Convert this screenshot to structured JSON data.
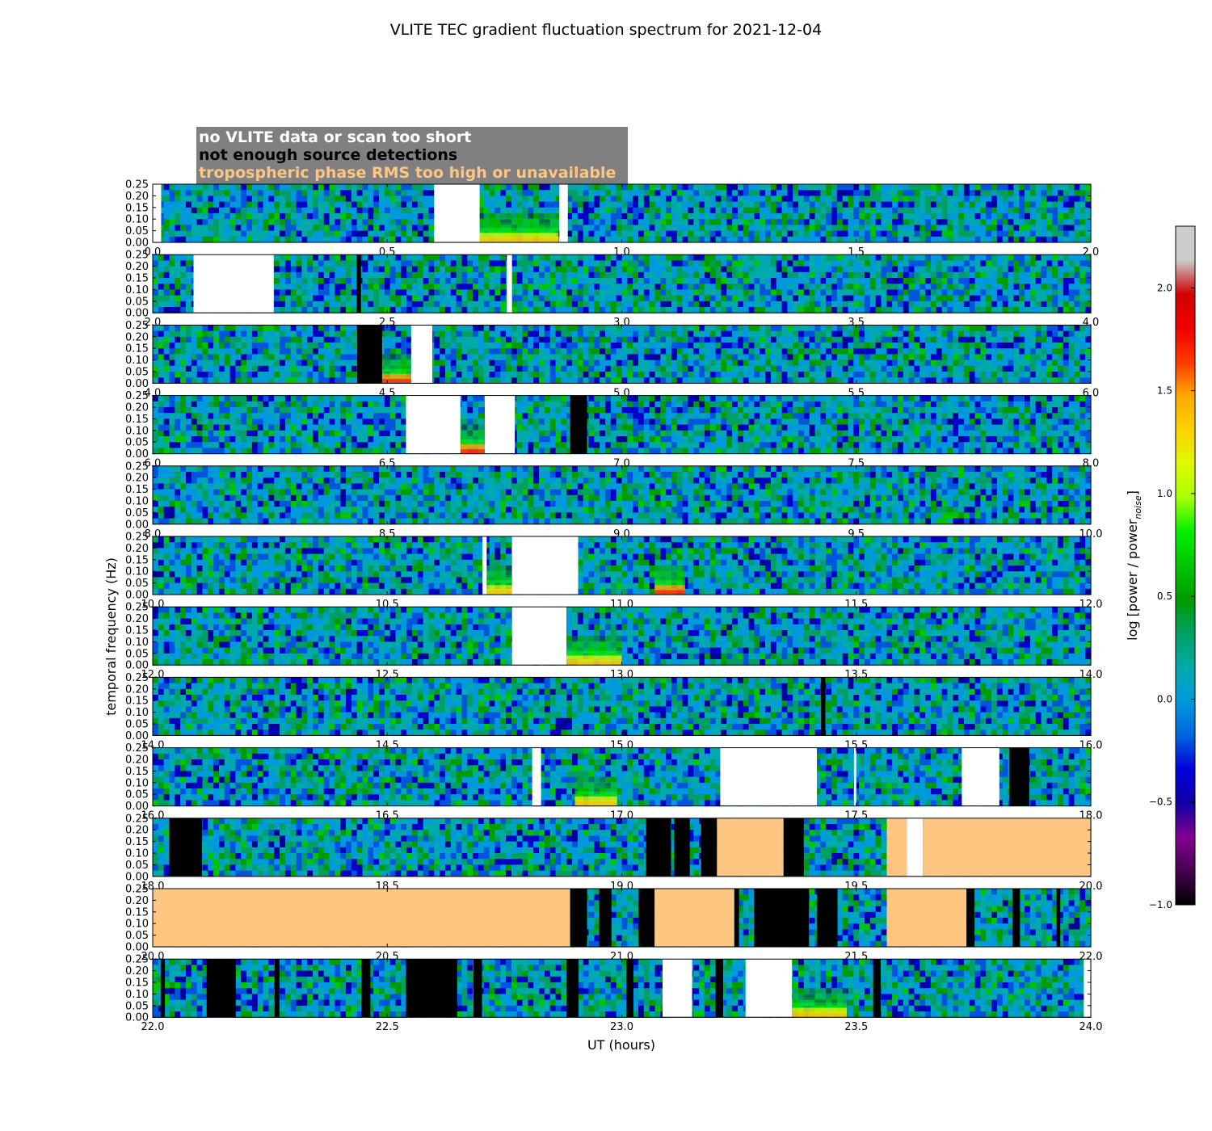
{
  "chart_data": {
    "type": "heatmap",
    "title": "VLITE TEC gradient fluctuation spectrum for 2021-12-04",
    "xlabel": "UT (hours)",
    "ylabel": "temporal frequency (Hz)",
    "ylim": [
      0,
      0.25
    ],
    "yticks": [
      "0.00",
      "0.05",
      "0.10",
      "0.15",
      "0.20",
      "0.25"
    ],
    "legend": {
      "placement": "top-left",
      "entries": [
        {
          "label": "no VLITE data or scan too short",
          "color": "#ffffff"
        },
        {
          "label": "not enough source detections",
          "color": "#000000"
        },
        {
          "label": "tropospheric phase RMS too high or unavailable",
          "color": "#ffc682"
        }
      ]
    },
    "colorbar": {
      "label": "log [power / power",
      "label_sub": "noise",
      "label_end": "]",
      "range": [
        -1.0,
        2.3
      ],
      "colormap": "nipy_spectral",
      "ticks": [
        "−1.0",
        "−0.5",
        "0.0",
        "0.5",
        "1.0",
        "1.5",
        "2.0"
      ],
      "tick_values": [
        -1.0,
        -0.5,
        0.0,
        0.5,
        1.0,
        1.5,
        2.0
      ]
    },
    "panels": [
      {
        "xlim": [
          0.0,
          2.0
        ],
        "xticks": [
          "0.0",
          "0.5",
          "1.0",
          "1.5",
          "2.0"
        ],
        "masks": [
          {
            "start": 0.0,
            "end": 0.018,
            "kind": "nodata"
          },
          {
            "start": 0.6,
            "end": 0.697,
            "kind": "nodata"
          },
          {
            "start": 0.867,
            "end": 0.885,
            "kind": "nodata"
          }
        ],
        "hotspots": [
          {
            "start": 0.697,
            "end": 0.865,
            "level": 1.3
          }
        ]
      },
      {
        "xlim": [
          2.0,
          4.0
        ],
        "xticks": [
          "2.0",
          "2.5",
          "3.0",
          "3.5",
          "4.0"
        ],
        "masks": [
          {
            "start": 2.087,
            "end": 2.258,
            "kind": "nodata"
          },
          {
            "start": 2.435,
            "end": 2.444,
            "kind": "nodet"
          },
          {
            "start": 2.755,
            "end": 2.766,
            "kind": "nodata"
          }
        ],
        "hotspots": []
      },
      {
        "xlim": [
          4.0,
          6.0
        ],
        "xticks": [
          "4.0",
          "4.5",
          "5.0",
          "5.5",
          "6.0"
        ],
        "masks": [
          {
            "start": 4.436,
            "end": 4.489,
            "kind": "nodet"
          },
          {
            "start": 4.551,
            "end": 4.596,
            "kind": "nodata"
          }
        ],
        "hotspots": [
          {
            "start": 4.489,
            "end": 4.551,
            "level": 1.6
          }
        ]
      },
      {
        "xlim": [
          6.0,
          8.0
        ],
        "xticks": [
          "6.0",
          "6.5",
          "7.0",
          "7.5",
          "8.0"
        ],
        "masks": [
          {
            "start": 6.54,
            "end": 6.656,
            "kind": "nodata"
          },
          {
            "start": 6.708,
            "end": 6.772,
            "kind": "nodata"
          },
          {
            "start": 6.89,
            "end": 6.926,
            "kind": "nodet"
          }
        ],
        "hotspots": [
          {
            "start": 6.656,
            "end": 6.708,
            "level": 1.6
          }
        ]
      },
      {
        "xlim": [
          8.0,
          10.0
        ],
        "xticks": [
          "8.0",
          "8.5",
          "9.0",
          "9.5",
          "10.0"
        ],
        "masks": [],
        "hotspots": []
      },
      {
        "xlim": [
          10.0,
          12.0
        ],
        "xticks": [
          "10.0",
          "10.5",
          "11.0",
          "11.5",
          "12.0"
        ],
        "masks": [
          {
            "start": 10.703,
            "end": 10.712,
            "kind": "nodata"
          },
          {
            "start": 10.766,
            "end": 10.907,
            "kind": "nodata"
          }
        ],
        "hotspots": [
          {
            "start": 10.712,
            "end": 10.766,
            "level": 1.3
          },
          {
            "start": 11.07,
            "end": 11.135,
            "level": 1.7
          }
        ]
      },
      {
        "xlim": [
          12.0,
          14.0
        ],
        "xticks": [
          "12.0",
          "12.5",
          "13.0",
          "13.5",
          "14.0"
        ],
        "masks": [
          {
            "start": 12.766,
            "end": 12.882,
            "kind": "nodata"
          }
        ],
        "hotspots": [
          {
            "start": 12.882,
            "end": 13.0,
            "level": 1.4
          }
        ]
      },
      {
        "xlim": [
          14.0,
          16.0
        ],
        "xticks": [
          "14.0",
          "14.5",
          "15.0",
          "15.5",
          "16.0"
        ],
        "masks": [
          {
            "start": 15.425,
            "end": 15.434,
            "kind": "nodet"
          }
        ],
        "hotspots": []
      },
      {
        "xlim": [
          16.0,
          18.0
        ],
        "xticks": [
          "16.0",
          "16.5",
          "17.0",
          "17.5",
          "18.0"
        ],
        "masks": [
          {
            "start": 16.809,
            "end": 16.828,
            "kind": "nodata"
          },
          {
            "start": 17.21,
            "end": 17.416,
            "kind": "nodata"
          },
          {
            "start": 17.495,
            "end": 17.5,
            "kind": "nodata"
          },
          {
            "start": 17.725,
            "end": 17.805,
            "kind": "nodata"
          },
          {
            "start": 17.826,
            "end": 17.869,
            "kind": "nodet"
          }
        ],
        "hotspots": [
          {
            "start": 16.9,
            "end": 16.99,
            "level": 1.2
          }
        ]
      },
      {
        "xlim": [
          18.0,
          20.0
        ],
        "xticks": [
          "18.0",
          "18.5",
          "19.0",
          "19.5",
          "20.0"
        ],
        "masks": [
          {
            "start": 18.035,
            "end": 18.105,
            "kind": "nodet"
          },
          {
            "start": 19.052,
            "end": 19.105,
            "kind": "nodet"
          },
          {
            "start": 19.112,
            "end": 19.145,
            "kind": "nodet"
          },
          {
            "start": 19.169,
            "end": 19.203,
            "kind": "nodet"
          },
          {
            "start": 19.203,
            "end": 19.345,
            "kind": "trop"
          },
          {
            "start": 19.345,
            "end": 19.388,
            "kind": "nodet"
          },
          {
            "start": 19.565,
            "end": 19.608,
            "kind": "trop"
          },
          {
            "start": 19.608,
            "end": 19.642,
            "kind": "nodata"
          },
          {
            "start": 19.642,
            "end": 20.0,
            "kind": "trop"
          }
        ],
        "hotspots": []
      },
      {
        "xlim": [
          20.0,
          22.0
        ],
        "xticks": [
          "20.0",
          "20.5",
          "21.0",
          "21.5",
          "22.0"
        ],
        "masks": [
          {
            "start": 20.0,
            "end": 20.89,
            "kind": "trop"
          },
          {
            "start": 20.89,
            "end": 20.926,
            "kind": "nodet"
          },
          {
            "start": 20.952,
            "end": 20.978,
            "kind": "nodet"
          },
          {
            "start": 21.036,
            "end": 21.07,
            "kind": "nodet"
          },
          {
            "start": 21.07,
            "end": 21.24,
            "kind": "trop"
          },
          {
            "start": 21.24,
            "end": 21.25,
            "kind": "nodet"
          },
          {
            "start": 21.282,
            "end": 21.399,
            "kind": "nodet"
          },
          {
            "start": 21.416,
            "end": 21.46,
            "kind": "nodet"
          },
          {
            "start": 21.565,
            "end": 21.735,
            "kind": "trop"
          },
          {
            "start": 21.735,
            "end": 21.752,
            "kind": "nodet"
          },
          {
            "start": 21.833,
            "end": 21.849,
            "kind": "nodet"
          },
          {
            "start": 21.927,
            "end": 21.935,
            "kind": "nodet"
          }
        ],
        "hotspots": []
      },
      {
        "xlim": [
          22.0,
          24.0
        ],
        "xticks": [
          "22.0",
          "22.5",
          "23.0",
          "23.5",
          "24.0"
        ],
        "masks": [
          {
            "start": 22.017,
            "end": 22.026,
            "kind": "nodet"
          },
          {
            "start": 22.115,
            "end": 22.177,
            "kind": "nodet"
          },
          {
            "start": 22.26,
            "end": 22.27,
            "kind": "nodet"
          },
          {
            "start": 22.445,
            "end": 22.464,
            "kind": "nodet"
          },
          {
            "start": 22.54,
            "end": 22.649,
            "kind": "nodet"
          },
          {
            "start": 22.684,
            "end": 22.702,
            "kind": "nodet"
          },
          {
            "start": 22.882,
            "end": 22.908,
            "kind": "nodet"
          },
          {
            "start": 23.01,
            "end": 23.025,
            "kind": "nodet"
          },
          {
            "start": 23.087,
            "end": 23.15,
            "kind": "nodata"
          },
          {
            "start": 23.2,
            "end": 23.216,
            "kind": "nodet"
          },
          {
            "start": 23.264,
            "end": 23.363,
            "kind": "nodata"
          },
          {
            "start": 23.536,
            "end": 23.552,
            "kind": "nodet"
          },
          {
            "start": 23.985,
            "end": 24.0,
            "kind": "nodata"
          }
        ],
        "hotspots": [
          {
            "start": 23.363,
            "end": 23.48,
            "level": 1.2
          }
        ]
      }
    ]
  }
}
